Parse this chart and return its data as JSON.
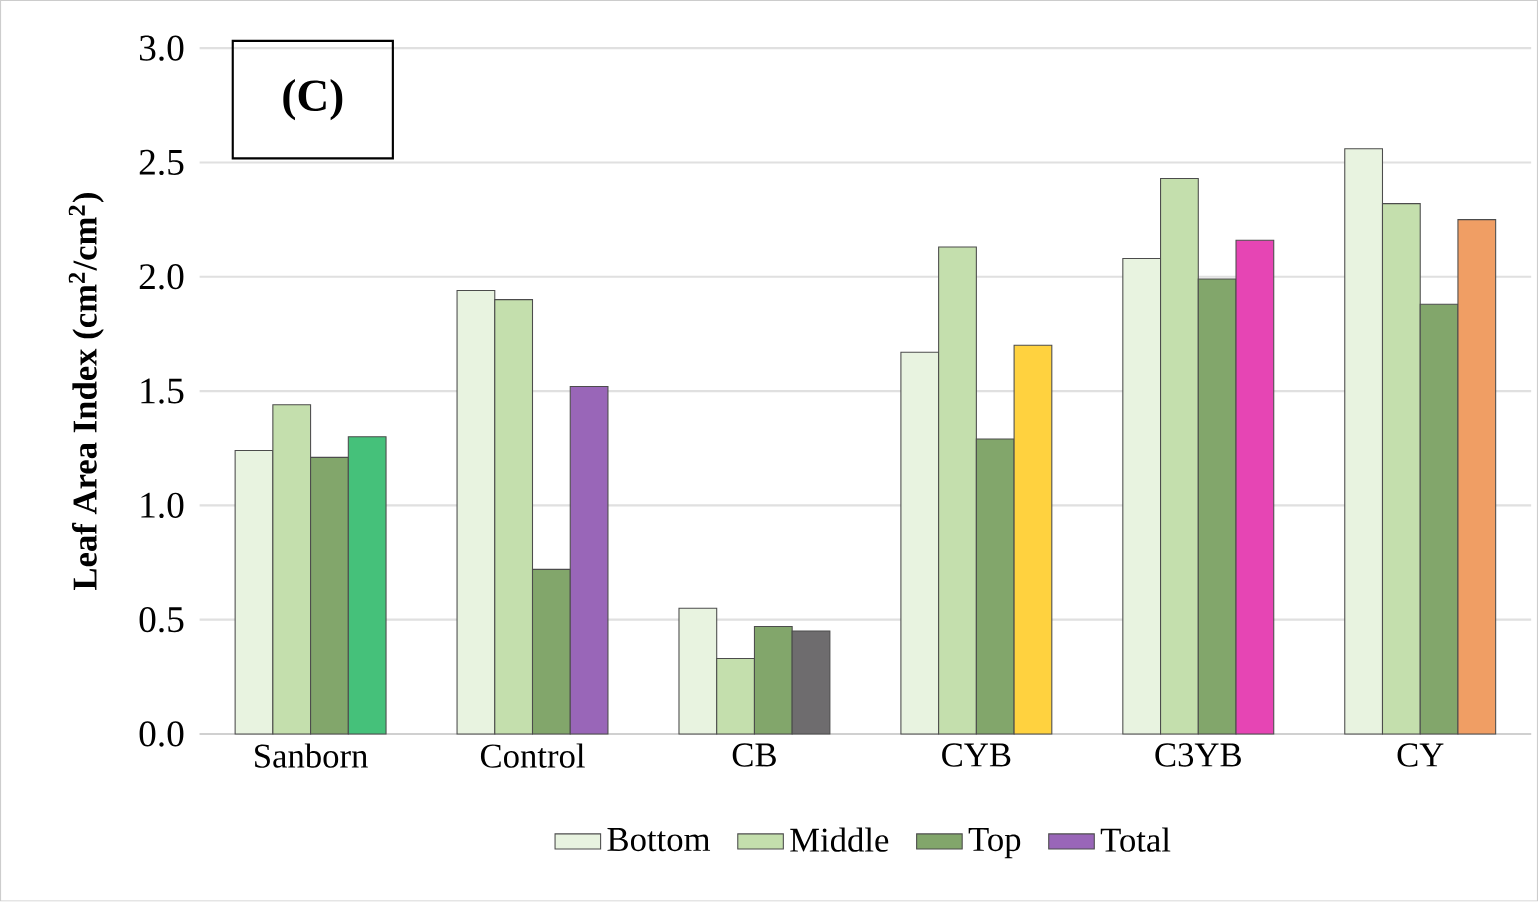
{
  "chart_data": {
    "type": "bar",
    "ylabel": "Leaf Area Index (cm$^{2}$/cm$^{2}$)",
    "annotations": [
      "(C)"
    ],
    "categories": [
      "Sanborn",
      "Control",
      "CB",
      "CYB",
      "C3YB",
      "CY"
    ],
    "series": [
      {
        "name": "Bottom",
        "color": "#e8f3e0",
        "values": [
          1.24,
          1.94,
          0.55,
          1.67,
          2.08,
          2.56
        ]
      },
      {
        "name": "Middle",
        "color": "#c4dfad",
        "values": [
          1.44,
          1.9,
          0.33,
          2.13,
          2.43,
          2.32
        ]
      },
      {
        "name": "Top",
        "color": "#82a66b",
        "values": [
          1.21,
          0.72,
          0.47,
          1.29,
          1.99,
          1.88
        ]
      },
      {
        "name": "Total",
        "color": "#9966b8",
        "colors": [
          "#45c17a",
          "#9966b8",
          "#6e6c6e",
          "#ffd23f",
          "#e645b4",
          "#f09e64"
        ],
        "values": [
          1.3,
          1.52,
          0.45,
          1.7,
          2.16,
          2.25
        ]
      }
    ],
    "ylim": [
      0,
      3
    ],
    "yticks": [
      {
        "value": 0,
        "label": "0.0"
      },
      {
        "value": 0.5,
        "label": "0.5"
      },
      {
        "value": 1,
        "label": "1.0"
      },
      {
        "value": 1.5,
        "label": "1.5"
      },
      {
        "value": 2,
        "label": "2.0"
      },
      {
        "value": 2.5,
        "label": "2.5"
      },
      {
        "value": 3,
        "label": "3.0"
      }
    ],
    "grid": "y",
    "legend": "bottom"
  }
}
